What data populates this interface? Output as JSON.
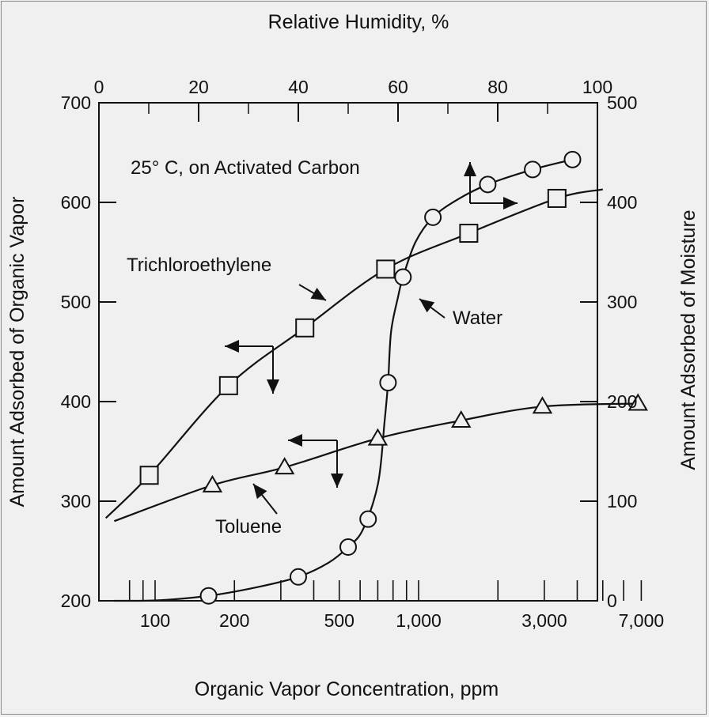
{
  "chart_data": {
    "type": "scatter",
    "title": "",
    "annotation_condition": "25° C, on Activated Carbon",
    "xlabel_bottom": "Organic Vapor Concentration, ppm",
    "xlabel_top": "Relative Humidity, %",
    "ylabel_left": "Amount Adsorbed of Organic Vapor",
    "ylabel_right": "Amount Adsorbed of Moisture",
    "x_bottom_scale": "log",
    "x_bottom_ticklabels": [
      "100",
      "200",
      "500",
      "1,000",
      "3,000",
      "7,000"
    ],
    "x_top_ticklabels": [
      "0",
      "20",
      "40",
      "60",
      "80",
      "100"
    ],
    "y_left_ticklabels": [
      "200",
      "300",
      "400",
      "500",
      "600",
      "700"
    ],
    "y_right_ticklabels": [
      "0",
      "100",
      "200",
      "300",
      "400",
      "500"
    ],
    "ylim_left": [
      200,
      700
    ],
    "ylim_right": [
      0,
      500
    ],
    "xlim_top": [
      0,
      100
    ],
    "grid": false,
    "series": [
      {
        "name": "Trichloroethylene",
        "marker": "square",
        "axes": "bottom-left",
        "x": [
          95,
          190,
          370,
          750,
          1550,
          3350
        ],
        "y": [
          326,
          416,
          474,
          533,
          569,
          604
        ]
      },
      {
        "name": "Toluene",
        "marker": "triangle",
        "axes": "bottom-left",
        "x": [
          165,
          310,
          700,
          1450,
          2950,
          6800
        ],
        "y": [
          316,
          334,
          363,
          381,
          395,
          398
        ]
      },
      {
        "name": "Water",
        "marker": "circle",
        "axes": "top-right",
        "x": [
          22,
          40,
          50,
          54,
          58,
          61,
          67,
          78,
          87,
          95
        ],
        "y": [
          5,
          24,
          54,
          82,
          219,
          325,
          385,
          418,
          433,
          443
        ]
      }
    ]
  }
}
